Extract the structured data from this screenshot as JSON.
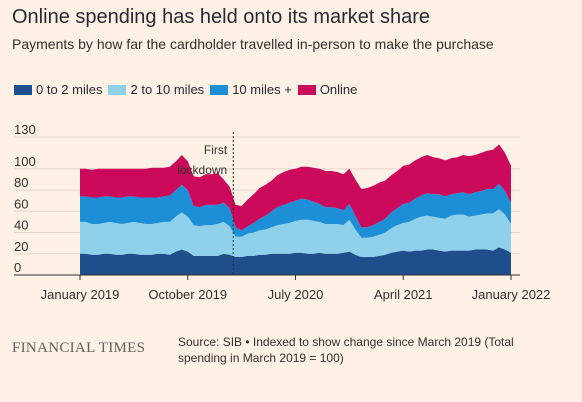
{
  "header": {
    "title": "Online spending has held onto its market share",
    "subtitle": "Payments by how far the cardholder travelled in-person to make the purchase"
  },
  "footer": {
    "logo": "FINANCIAL TIMES",
    "source_line1": "Source: SIB • Indexed to show change since March 2019 (Total",
    "source_line2": "spending in March 2019 = 100)"
  },
  "chart_data": {
    "type": "area",
    "stacked": true,
    "title": "Online spending has held onto its market share",
    "subtitle": "Payments by how far the cardholder travelled in-person to make the purchase",
    "y_ticks": [
      0,
      20,
      40,
      60,
      80,
      100,
      130
    ],
    "ylim": [
      0,
      130
    ],
    "x_tick_labels": [
      "January 2019",
      "October 2019",
      "July 2020",
      "April 2021",
      "January 2022"
    ],
    "x_tick_months": [
      0,
      9,
      18,
      27,
      36
    ],
    "xlim_months": [
      0,
      36
    ],
    "grid": true,
    "legend_position": "top",
    "annotation": {
      "line1": "First",
      "line2": "lockdown",
      "month": 12.8
    },
    "x_months": [
      0,
      0.5,
      1,
      1.5,
      2,
      2.5,
      3,
      3.5,
      4,
      4.5,
      5,
      5.5,
      6,
      6.5,
      7,
      7.5,
      8,
      8.5,
      9,
      9.5,
      10,
      10.5,
      11,
      11.5,
      12,
      12.5,
      13,
      13.5,
      14,
      14.5,
      15,
      15.5,
      16,
      16.5,
      17,
      17.5,
      18,
      18.5,
      19,
      19.5,
      20,
      20.5,
      21,
      21.5,
      22,
      22.5,
      23,
      23.5,
      24,
      24.5,
      25,
      25.5,
      26,
      26.5,
      27,
      27.5,
      28,
      28.5,
      29,
      29.5,
      30,
      30.5,
      31,
      31.5,
      32,
      32.5,
      33,
      33.5,
      34,
      34.5,
      35,
      35.5,
      36
    ],
    "series": [
      {
        "name": "0 to 2 miles",
        "color": "#1f4e8c",
        "values": [
          20,
          20,
          19,
          19,
          20,
          20,
          19,
          19,
          20,
          20,
          19,
          19,
          19,
          20,
          20,
          19,
          22,
          24,
          22,
          18,
          18,
          18,
          18,
          18,
          20,
          19,
          17,
          17,
          18,
          18,
          19,
          19,
          20,
          20,
          20,
          20,
          21,
          21,
          20,
          20,
          21,
          20,
          20,
          20,
          21,
          22,
          19,
          17,
          17,
          17,
          18,
          19,
          21,
          22,
          23,
          22,
          23,
          23,
          24,
          24,
          23,
          22,
          23,
          23,
          23,
          23,
          24,
          24,
          24,
          23,
          26,
          24,
          21
        ]
      },
      {
        "name": "2 to 10 miles",
        "color": "#8fd1ea",
        "values": [
          30,
          30,
          29,
          29,
          29,
          30,
          30,
          29,
          29,
          30,
          30,
          29,
          29,
          29,
          30,
          31,
          33,
          35,
          33,
          29,
          28,
          29,
          29,
          30,
          30,
          27,
          19,
          19,
          21,
          22,
          23,
          24,
          25,
          27,
          28,
          29,
          30,
          31,
          32,
          31,
          29,
          28,
          28,
          28,
          26,
          30,
          24,
          18,
          18,
          19,
          20,
          21,
          23,
          25,
          26,
          28,
          30,
          32,
          32,
          31,
          31,
          31,
          33,
          34,
          34,
          32,
          32,
          33,
          34,
          35,
          36,
          33,
          27
        ]
      },
      {
        "name": "10 miles +",
        "color": "#1c8fd6",
        "values": [
          24,
          24,
          25,
          25,
          25,
          24,
          24,
          25,
          25,
          24,
          24,
          25,
          25,
          24,
          24,
          25,
          25,
          26,
          25,
          18,
          18,
          19,
          19,
          18,
          18,
          17,
          9,
          6,
          7,
          9,
          11,
          13,
          15,
          17,
          18,
          19,
          19,
          20,
          19,
          18,
          17,
          16,
          16,
          15,
          14,
          15,
          13,
          10,
          10,
          11,
          12,
          13,
          15,
          16,
          18,
          18,
          19,
          20,
          21,
          21,
          22,
          21,
          20,
          20,
          21,
          21,
          22,
          22,
          23,
          23,
          24,
          22,
          20
        ]
      },
      {
        "name": "Online",
        "color": "#cc0a5b",
        "values": [
          26,
          26,
          26,
          27,
          26,
          26,
          27,
          27,
          26,
          26,
          27,
          27,
          28,
          28,
          27,
          27,
          27,
          28,
          27,
          28,
          28,
          29,
          29,
          30,
          22,
          20,
          21,
          23,
          25,
          27,
          29,
          29,
          29,
          30,
          31,
          31,
          30,
          30,
          31,
          32,
          33,
          34,
          34,
          34,
          34,
          33,
          34,
          36,
          37,
          37,
          37,
          36,
          35,
          35,
          36,
          36,
          36,
          36,
          36,
          35,
          34,
          34,
          34,
          34,
          35,
          36,
          35,
          36,
          36,
          37,
          37,
          36,
          35
        ]
      }
    ]
  }
}
